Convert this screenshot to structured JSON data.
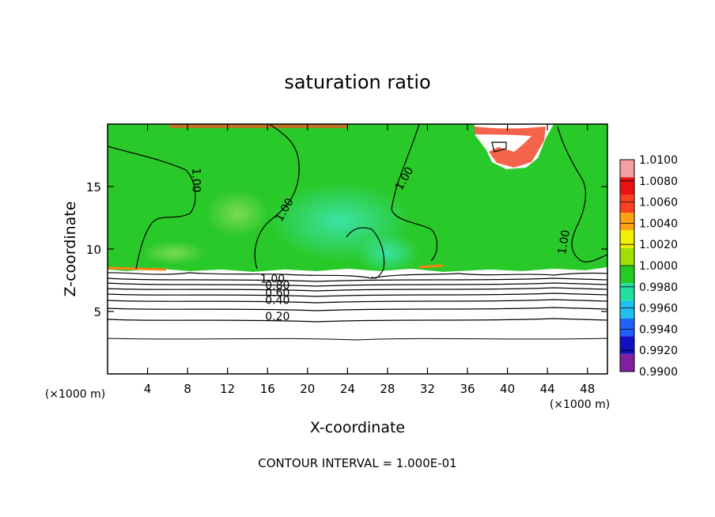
{
  "chart_data": {
    "type": "heatmap",
    "title": "saturation ratio",
    "xlabel": "X-coordinate",
    "ylabel": "Z-coordinate",
    "x_unit_label_left": "(×1000 m)",
    "x_unit_label_right": "(×1000 m)",
    "xlim": [
      0,
      50
    ],
    "ylim": [
      0,
      20
    ],
    "x_ticks": [
      4,
      8,
      12,
      16,
      20,
      24,
      28,
      32,
      36,
      40,
      44,
      48
    ],
    "y_ticks": [
      5,
      10,
      15
    ],
    "grid": false,
    "colorbar": {
      "placement": "right",
      "levels": [
        "1.0100",
        "1.0080",
        "1.0060",
        "1.0040",
        "1.0020",
        "1.0000",
        "0.9980",
        "0.9960",
        "0.9940",
        "0.9920",
        "0.9900"
      ],
      "colors": [
        "#f2a0a0",
        "#ee1010",
        "#ff4020",
        "#ffa010",
        "#f0f000",
        "#a0e000",
        "#22cc22",
        "#20e0a0",
        "#20c0f0",
        "#2060ff",
        "#1010c0",
        "#8020a0"
      ]
    },
    "contour_labels": [
      {
        "text": "1.00",
        "x": 8.5,
        "y": 15.5,
        "angle": 90
      },
      {
        "text": "1.00",
        "x": 18.0,
        "y": 13.0,
        "angle": -60
      },
      {
        "text": "1.00",
        "x": 30.0,
        "y": 15.5,
        "angle": -60
      },
      {
        "text": "1.00",
        "x": 46.0,
        "y": 10.5,
        "angle": -80
      },
      {
        "text": "1.00",
        "x": 16.5,
        "y": 7.3,
        "angle": 0
      },
      {
        "text": "0.80",
        "x": 17.0,
        "y": 6.8,
        "angle": 0
      },
      {
        "text": "0.60",
        "x": 17.0,
        "y": 6.2,
        "angle": 0
      },
      {
        "text": "0.40",
        "x": 17.0,
        "y": 5.6,
        "angle": 0
      },
      {
        "text": "0.20",
        "x": 17.0,
        "y": 4.3,
        "angle": 0
      }
    ],
    "footer": "CONTOUR INTERVAL = 1.000E-01"
  }
}
